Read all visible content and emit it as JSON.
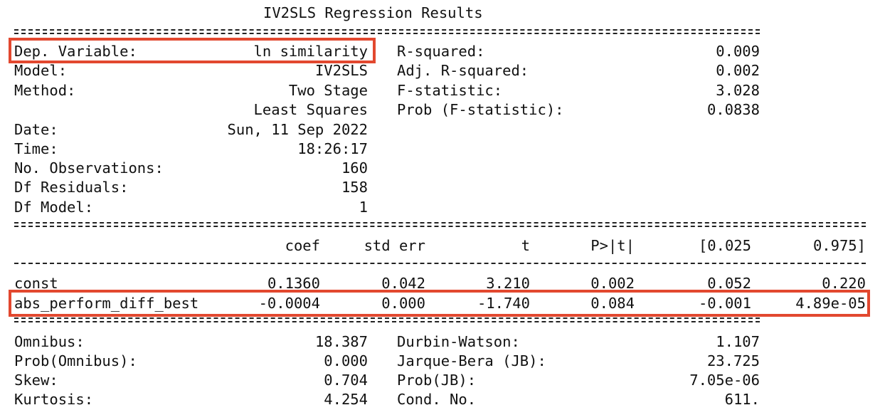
{
  "title": "IV2SLS Regression Results",
  "top_left": [
    {
      "label": "Dep. Variable:",
      "value": "ln similarity"
    },
    {
      "label": "Model:",
      "value": "IV2SLS"
    },
    {
      "label": "Method:",
      "value": "Two Stage"
    },
    {
      "label": "",
      "value": "Least Squares"
    },
    {
      "label": "Date:",
      "value": "Sun, 11 Sep 2022"
    },
    {
      "label": "Time:",
      "value": "18:26:17"
    },
    {
      "label": "No. Observations:",
      "value": "160"
    },
    {
      "label": "Df Residuals:",
      "value": "158"
    },
    {
      "label": "Df Model:",
      "value": "1"
    }
  ],
  "top_right": [
    {
      "label": "R-squared:",
      "value": "0.009"
    },
    {
      "label": "Adj. R-squared:",
      "value": "0.002"
    },
    {
      "label": "F-statistic:",
      "value": "3.028"
    },
    {
      "label": "Prob (F-statistic):",
      "value": "0.0838"
    }
  ],
  "coef_headers": [
    "coef",
    "std err",
    "t",
    "P>|t|",
    "[0.025",
    "0.975]"
  ],
  "coef_rows": [
    {
      "name": "const",
      "values": [
        "0.1360",
        "0.042",
        "3.210",
        "0.002",
        "0.052",
        "0.220"
      ]
    },
    {
      "name": "abs_perform_diff_best",
      "values": [
        "-0.0004",
        "0.000",
        "-1.740",
        "0.084",
        "-0.001",
        "4.89e-05"
      ]
    }
  ],
  "bottom_left": [
    {
      "label": "Omnibus:",
      "value": "18.387"
    },
    {
      "label": "Prob(Omnibus):",
      "value": "0.000"
    },
    {
      "label": "Skew:",
      "value": "0.704"
    },
    {
      "label": "Kurtosis:",
      "value": "4.254"
    }
  ],
  "bottom_right": [
    {
      "label": "Durbin-Watson:",
      "value": "1.107"
    },
    {
      "label": "Jarque-Bera (JB):",
      "value": "23.725"
    },
    {
      "label": "Prob(JB):",
      "value": "7.05e-06"
    },
    {
      "label": "Cond. No.",
      "value": "611."
    }
  ],
  "highlight_color": "#e2482f"
}
